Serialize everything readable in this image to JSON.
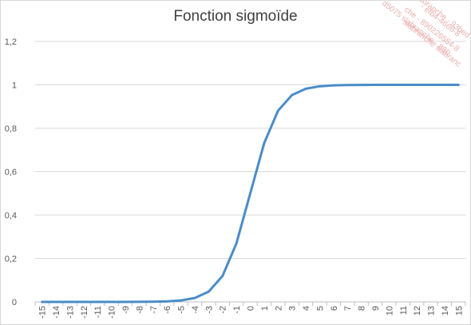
{
  "chart_data": {
    "type": "line",
    "title": "Fonction sigmoïde",
    "xlabel": "",
    "ylabel": "",
    "categories": [
      "-15",
      "-14",
      "-13",
      "-12",
      "-11",
      "-10",
      "-9",
      "-8",
      "-7",
      "-6",
      "-5",
      "-4",
      "-3",
      "-2",
      "-1",
      "0",
      "1",
      "2",
      "3",
      "4",
      "5",
      "6",
      "7",
      "8",
      "9",
      "10",
      "11",
      "12",
      "13",
      "14",
      "15"
    ],
    "series": [
      {
        "values": [
          3e-07,
          8e-07,
          2.3e-06,
          6.1e-06,
          1.67e-05,
          4.54e-05,
          0.0001234,
          0.0003354,
          0.0009111,
          0.0024726,
          0.0066929,
          0.0179862,
          0.0474259,
          0.1192029,
          0.2689414,
          0.5,
          0.7310586,
          0.8807971,
          0.9525741,
          0.9820138,
          0.9933071,
          0.9975274,
          0.9990889,
          0.9996646,
          0.9998766,
          0.9999546,
          0.9999833,
          0.9999939,
          0.9999977,
          0.9999992,
          0.9999997
        ],
        "color": "#4a8cc8"
      }
    ],
    "ylim": [
      0,
      1.2
    ],
    "yticks": [
      "0",
      "0,2",
      "0,4",
      "0,6",
      "0,8",
      "1",
      "1,2"
    ],
    "grid": true,
    "legend": "none",
    "colors": {
      "line": "#4a8cc8",
      "grid": "#d9d9d9",
      "axis": "#bfbfbf",
      "text": "#595959",
      "title": "#404040"
    }
  },
  "watermark": {
    "lines": [
      "slabranche - 93bed",
      "- efb4-4666-8",
      "che - 890226554-8",
      "d5075 slabranche - 880",
      "slabranche slabranc"
    ]
  }
}
